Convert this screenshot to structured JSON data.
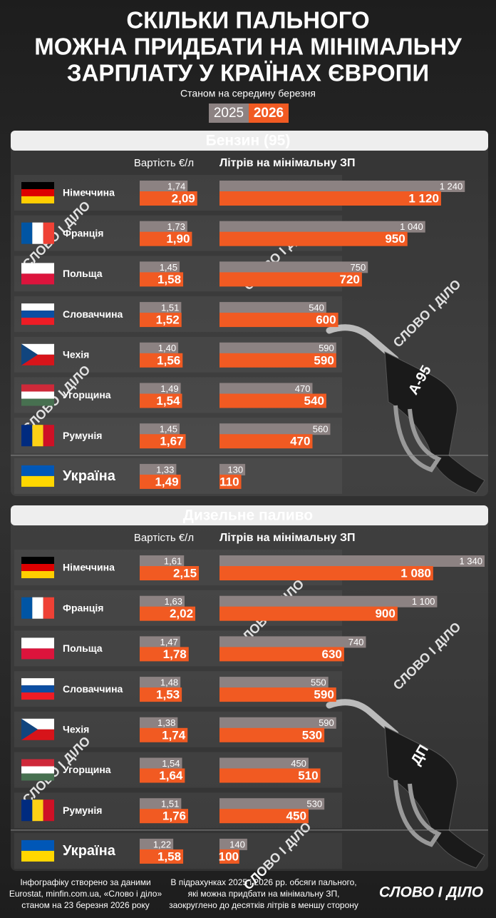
{
  "header": {
    "title": [
      "Скільки пального",
      "можна придбати на мінімальну",
      "зарплату у країнах Європи"
    ],
    "subtitle": "Станом на середину березня",
    "legend": [
      "2025",
      "2026"
    ]
  },
  "brand": "СЛОВО І ДІЛО",
  "chart_data": [
    {
      "type": "bar",
      "orientation": "horizontal",
      "title": "Бензин (95)",
      "pump_label": "А-95",
      "categories": [
        "Німеччина",
        "Франція",
        "Польща",
        "Словаччина",
        "Чехія",
        "Угорщина",
        "Румунія",
        "Україна"
      ],
      "cost": {
        "label": "Вартість €/л",
        "xlim": [
          0,
          2.2
        ],
        "series": [
          {
            "color": "#8c8282",
            "values": [
              1.74,
              1.73,
              1.45,
              1.51,
              1.4,
              1.49,
              1.45,
              1.33
            ],
            "value_labels": [
              "1,74",
              "1,73",
              "1,45",
              "1,51",
              "1,40",
              "1,49",
              "1,45",
              "1,33"
            ]
          },
          {
            "color": "#f15a22",
            "values": [
              2.09,
              1.9,
              1.58,
              1.52,
              1.56,
              1.54,
              1.67,
              1.49
            ],
            "value_labels": [
              "2,09",
              "1,90",
              "1,58",
              "1,52",
              "1,56",
              "1,54",
              "1,67",
              "1,49"
            ]
          }
        ]
      },
      "liters": {
        "label": "Літрів на мінімальну ЗП",
        "xlim": [
          0,
          1340
        ],
        "series": [
          {
            "color": "#8c8282",
            "values": [
              1240,
              1040,
              750,
              540,
              590,
              470,
              560,
              130
            ],
            "value_labels": [
              "1 240",
              "1 040",
              "750",
              "540",
              "590",
              "470",
              "560",
              "130"
            ]
          },
          {
            "color": "#f15a22",
            "values": [
              1120,
              950,
              720,
              600,
              590,
              540,
              470,
              110
            ],
            "value_labels": [
              "1 120",
              "950",
              "720",
              "600",
              "590",
              "540",
              "470",
              "110"
            ]
          }
        ]
      }
    },
    {
      "type": "bar",
      "orientation": "horizontal",
      "title": "Дизельне паливо",
      "pump_label": "ДП",
      "categories": [
        "Німеччина",
        "Франція",
        "Польща",
        "Словаччина",
        "Чехія",
        "Угорщина",
        "Румунія",
        "Україна"
      ],
      "cost": {
        "label": "Вартість €/л",
        "xlim": [
          0,
          2.2
        ],
        "series": [
          {
            "color": "#8c8282",
            "values": [
              1.61,
              1.63,
              1.47,
              1.48,
              1.38,
              1.54,
              1.51,
              1.22
            ],
            "value_labels": [
              "1,61",
              "1,63",
              "1,47",
              "1,48",
              "1,38",
              "1,54",
              "1,51",
              "1,22"
            ]
          },
          {
            "color": "#f15a22",
            "values": [
              2.15,
              2.02,
              1.78,
              1.53,
              1.74,
              1.64,
              1.76,
              1.58
            ],
            "value_labels": [
              "2,15",
              "2,02",
              "1,78",
              "1,53",
              "1,74",
              "1,64",
              "1,76",
              "1,58"
            ]
          }
        ]
      },
      "liters": {
        "label": "Літрів на мінімальну ЗП",
        "xlim": [
          0,
          1340
        ],
        "series": [
          {
            "color": "#8c8282",
            "values": [
              1340,
              1100,
              740,
              550,
              590,
              450,
              530,
              140
            ],
            "value_labels": [
              "1 340",
              "1 100",
              "740",
              "550",
              "590",
              "450",
              "530",
              "140"
            ]
          },
          {
            "color": "#f15a22",
            "values": [
              1080,
              900,
              630,
              590,
              530,
              510,
              450,
              100
            ],
            "value_labels": [
              "1 080",
              "900",
              "630",
              "590",
              "530",
              "510",
              "450",
              "100"
            ]
          }
        ]
      }
    }
  ],
  "footer": {
    "left": [
      "Інфографіку створено за даними",
      "Eurostat, minfin.com.ua, «Слово і діло»",
      "станом на 23 березня 2026 року"
    ],
    "middle": [
      "В підрахунках 2025 і 2026 рр. обсяги пального,",
      "які можна придбати на мінімальну ЗП,",
      "заокруглено до десятків літрів в меншу сторону"
    ]
  }
}
